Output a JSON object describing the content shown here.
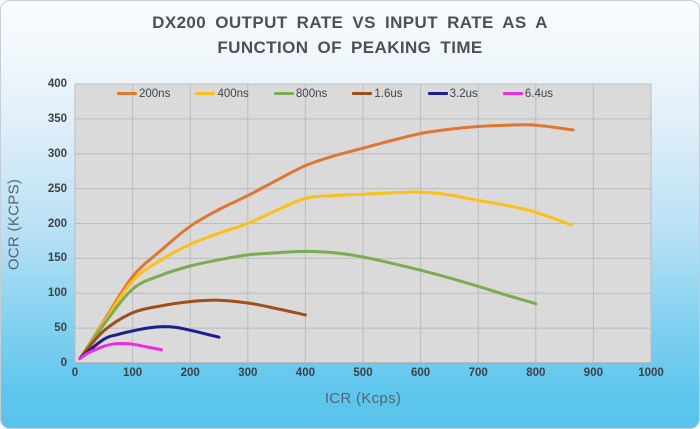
{
  "title": {
    "line1": "DX200 OUTPUT RATE VS INPUT RATE AS A",
    "line2": "FUNCTION OF PEAKING TIME"
  },
  "chart_data": {
    "type": "line",
    "title": "DX200 OUTPUT RATE VS INPUT RATE AS A FUNCTION OF PEAKING TIME",
    "xlabel": "ICR (Kcps)",
    "ylabel": "OCR (KCPS)",
    "xlim": [
      0,
      1000
    ],
    "ylim": [
      0,
      400
    ],
    "x_ticks": [
      0,
      100,
      200,
      300,
      400,
      500,
      600,
      700,
      800,
      900,
      1000
    ],
    "y_ticks": [
      0,
      50,
      100,
      150,
      200,
      250,
      300,
      350,
      400
    ],
    "grid": true,
    "legend_position": "top-inside",
    "plot_background": "#dadada",
    "gridline_color": "#bcbcbc",
    "axis_line_color": "#a8a8a8",
    "series": [
      {
        "name": "200ns",
        "color": "#e0772e",
        "points": [
          [
            10,
            8
          ],
          [
            50,
            60
          ],
          [
            100,
            124
          ],
          [
            150,
            162
          ],
          [
            200,
            196
          ],
          [
            250,
            220
          ],
          [
            300,
            240
          ],
          [
            350,
            262
          ],
          [
            400,
            283
          ],
          [
            450,
            297
          ],
          [
            500,
            308
          ],
          [
            550,
            319
          ],
          [
            600,
            329
          ],
          [
            650,
            335
          ],
          [
            700,
            339
          ],
          [
            750,
            341
          ],
          [
            800,
            341
          ],
          [
            865,
            334
          ]
        ]
      },
      {
        "name": "400ns",
        "color": "#fbc116",
        "points": [
          [
            10,
            8
          ],
          [
            50,
            58
          ],
          [
            100,
            118
          ],
          [
            150,
            148
          ],
          [
            200,
            170
          ],
          [
            250,
            186
          ],
          [
            300,
            200
          ],
          [
            350,
            219
          ],
          [
            400,
            236
          ],
          [
            450,
            240
          ],
          [
            500,
            242
          ],
          [
            550,
            244
          ],
          [
            600,
            245
          ],
          [
            650,
            241
          ],
          [
            700,
            233
          ],
          [
            750,
            226
          ],
          [
            800,
            216
          ],
          [
            862,
            198
          ]
        ]
      },
      {
        "name": "800ns",
        "color": "#7aac51",
        "points": [
          [
            10,
            8
          ],
          [
            50,
            55
          ],
          [
            100,
            106
          ],
          [
            150,
            126
          ],
          [
            200,
            139
          ],
          [
            250,
            148
          ],
          [
            300,
            155
          ],
          [
            350,
            158
          ],
          [
            400,
            160
          ],
          [
            450,
            158
          ],
          [
            500,
            152
          ],
          [
            550,
            143
          ],
          [
            600,
            133
          ],
          [
            650,
            122
          ],
          [
            700,
            110
          ],
          [
            750,
            97
          ],
          [
            800,
            85
          ]
        ]
      },
      {
        "name": "1.6us",
        "color": "#9e5018",
        "points": [
          [
            10,
            8
          ],
          [
            50,
            46
          ],
          [
            100,
            72
          ],
          [
            150,
            82
          ],
          [
            200,
            88
          ],
          [
            250,
            90
          ],
          [
            300,
            86
          ],
          [
            350,
            78
          ],
          [
            400,
            69
          ]
        ]
      },
      {
        "name": "3.2us",
        "color": "#1b1e8c",
        "points": [
          [
            10,
            8
          ],
          [
            50,
            34
          ],
          [
            75,
            41
          ],
          [
            100,
            46
          ],
          [
            125,
            50
          ],
          [
            150,
            52
          ],
          [
            175,
            51
          ],
          [
            200,
            47
          ],
          [
            225,
            42
          ],
          [
            250,
            37
          ]
        ]
      },
      {
        "name": "6.4us",
        "color": "#ee2be2",
        "points": [
          [
            8,
            6
          ],
          [
            20,
            13
          ],
          [
            35,
            19
          ],
          [
            50,
            24
          ],
          [
            65,
            27
          ],
          [
            80,
            28
          ],
          [
            100,
            27
          ],
          [
            125,
            23
          ],
          [
            150,
            19
          ]
        ]
      }
    ]
  }
}
